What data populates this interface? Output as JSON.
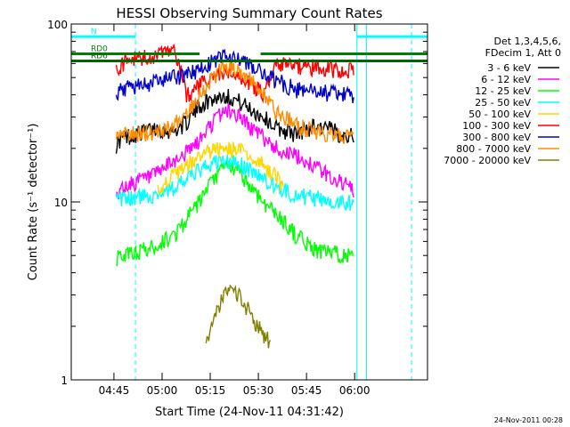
{
  "chart_data": {
    "type": "line",
    "title": "HESSI Observing Summary Count Rates",
    "xlabel": "Start Time (24-Nov-11 04:31:42)",
    "ylabel": "Count Rate (s⁻¹ detector⁻¹)",
    "yscale": "log",
    "ylim": [
      1,
      100
    ],
    "xlim_min_since_0431": [
      0,
      111
    ],
    "x_ticks": [
      "04:45",
      "05:00",
      "05:15",
      "05:30",
      "05:45",
      "06:00"
    ],
    "y_ticks": [
      "1",
      "10",
      "100"
    ],
    "legend_header": [
      "Det 1,3,4,5,6,",
      "FDecim 1, Att 0"
    ],
    "legend_position": "right",
    "footer_date": "24-Nov-2011 00:28",
    "flags": [
      {
        "label": "N",
        "color": "#00ffff",
        "segments": [
          [
            0,
            20
          ],
          [
            89,
            111
          ]
        ],
        "y": 85
      },
      {
        "label": "RD0",
        "color": "#008000",
        "segments": [
          [
            0,
            40
          ],
          [
            59,
            111
          ]
        ],
        "y": 68
      },
      {
        "label": "RD6",
        "color": "#006400",
        "segments": [
          [
            0,
            111
          ]
        ],
        "y": 62
      }
    ],
    "vlines": [
      {
        "x": 20,
        "style": "dashed",
        "color": "#00ffff"
      },
      {
        "x": 89,
        "style": "solid",
        "color": "#00ffff"
      },
      {
        "x": 92,
        "style": "solid",
        "color": "#00ffff"
      },
      {
        "x": 106,
        "style": "dashed",
        "color": "#00ffff"
      }
    ],
    "series": [
      {
        "name": "3 - 6 keV",
        "color": "#000000",
        "x": [
          14,
          16,
          20,
          26,
          32,
          36,
          40,
          44,
          48,
          52,
          56,
          60,
          64,
          70,
          76,
          80,
          84,
          87,
          88
        ],
        "y": [
          21,
          23,
          24,
          26,
          25,
          28,
          35,
          38,
          40,
          37,
          33,
          30,
          26,
          24,
          27,
          26,
          24,
          24,
          21
        ]
      },
      {
        "name": "6 - 12 keV",
        "color": "#ff00ff",
        "x": [
          14,
          16,
          20,
          26,
          32,
          36,
          40,
          44,
          48,
          52,
          56,
          60,
          64,
          70,
          76,
          80,
          84,
          87,
          88
        ],
        "y": [
          11,
          12,
          13,
          14,
          17,
          19,
          22,
          28,
          33,
          31,
          26,
          23,
          20,
          18,
          16,
          14,
          13,
          12,
          11
        ]
      },
      {
        "name": "12 - 25 keV",
        "color": "#00ff00",
        "x": [
          14,
          16,
          20,
          26,
          32,
          36,
          40,
          44,
          48,
          52,
          56,
          60,
          64,
          70,
          76,
          80,
          84,
          87,
          88
        ],
        "y": [
          4.8,
          5.0,
          5.2,
          5.6,
          6.5,
          8,
          10,
          13,
          16,
          15,
          12,
          10,
          8.5,
          6.5,
          5.4,
          5.2,
          5.1,
          5.0,
          4.8
        ]
      },
      {
        "name": "25 - 50 keV",
        "color": "#00ffff",
        "x": [
          14,
          16,
          20,
          26,
          32,
          36,
          40,
          44,
          48,
          52,
          56,
          60,
          64,
          70,
          76,
          80,
          84,
          87,
          88
        ],
        "y": [
          10,
          10.3,
          10.6,
          11,
          12,
          13.5,
          15,
          16.5,
          17,
          16.5,
          15,
          13.5,
          12,
          11,
          10.5,
          10.2,
          10,
          10,
          9.8
        ]
      },
      {
        "name": "50 - 100 keV",
        "color": "#ffd700",
        "x": [
          27,
          32,
          36,
          40,
          44,
          48,
          52,
          56,
          60,
          64,
          66
        ],
        "y": [
          12,
          14,
          16,
          18,
          19.5,
          20,
          19.5,
          18,
          16,
          14,
          12
        ]
      },
      {
        "name": "100 - 300 keV",
        "color": "#ff0000",
        "x": [
          14,
          16,
          20,
          26,
          32,
          36,
          40,
          44,
          48,
          52,
          56,
          60,
          64,
          70,
          76,
          80,
          84,
          87,
          88
        ],
        "y": [
          56,
          60,
          64,
          66,
          70,
          40,
          45,
          50,
          53,
          50,
          46,
          41,
          60,
          58,
          57,
          56,
          55,
          55,
          54
        ]
      },
      {
        "name": "300 - 800 keV",
        "color": "#0000cd",
        "x": [
          14,
          16,
          20,
          26,
          32,
          36,
          40,
          44,
          48,
          52,
          56,
          60,
          64,
          70,
          76,
          80,
          84,
          87,
          88
        ],
        "y": [
          40,
          43,
          45,
          47,
          50,
          52,
          56,
          62,
          66,
          63,
          58,
          52,
          48,
          43,
          42,
          41,
          40,
          40,
          39
        ]
      },
      {
        "name": "800 - 7000 keV",
        "color": "#ff8c00",
        "x": [
          14,
          16,
          20,
          26,
          32,
          36,
          40,
          44,
          48,
          52,
          56,
          60,
          64,
          70,
          76,
          80,
          84,
          87,
          88
        ],
        "y": [
          23,
          24,
          24,
          25,
          27,
          32,
          40,
          50,
          58,
          56,
          48,
          40,
          32,
          27,
          25,
          24,
          24,
          23,
          23
        ]
      },
      {
        "name": "7000 - 20000 keV",
        "color": "#808000",
        "x": [
          42,
          44,
          46,
          48,
          50,
          52,
          54,
          56,
          58,
          60,
          62
        ],
        "y": [
          1.6,
          2.0,
          2.6,
          3.0,
          3.1,
          3.0,
          2.7,
          2.3,
          2.0,
          1.8,
          1.6
        ]
      }
    ]
  }
}
